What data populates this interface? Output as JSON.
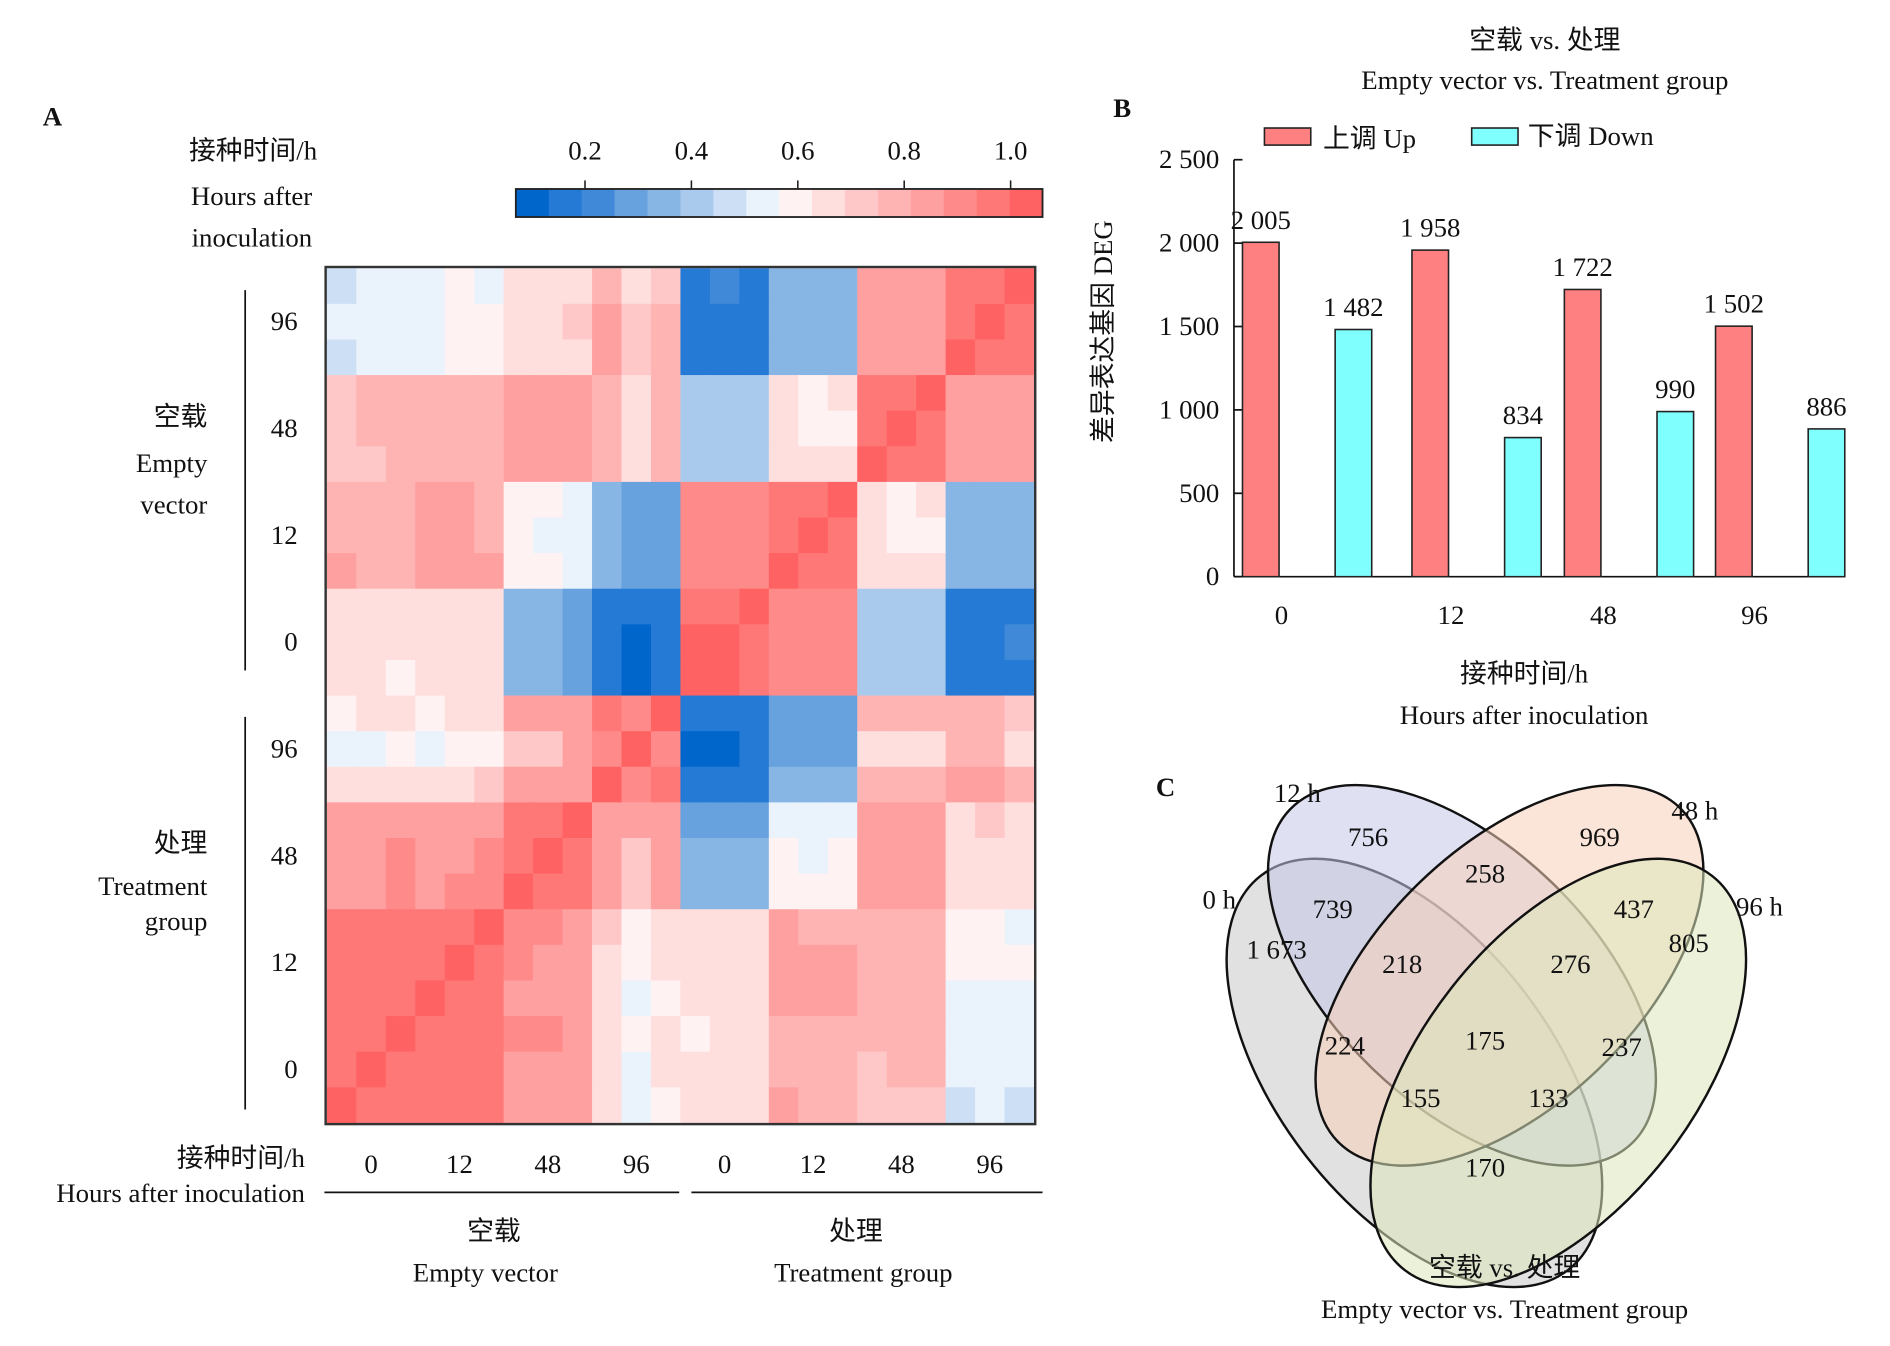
{
  "panels": {
    "a": "A",
    "b": "B",
    "c": "C"
  },
  "chart_data": [
    {
      "type": "heatmap",
      "panel": "A",
      "title": "",
      "axis_title_cn": "接种时间/h",
      "axis_title_en_line1": "Hours after",
      "axis_title_en_line2": "inoculation",
      "bottom_axis_title_cn": "接种时间/h",
      "bottom_axis_title_en": "Hours after inoculation",
      "colorbar": {
        "ticks": [
          "0.2",
          "0.4",
          "0.6",
          "0.8",
          "1.0"
        ],
        "tick_values": [
          0.2,
          0.4,
          0.6,
          0.8,
          1.0
        ],
        "range": [
          0.07,
          1.06
        ],
        "levels": [
          "#0066cc",
          "#247ad4",
          "#4089d8",
          "#67a2df",
          "#87b5e4",
          "#a9caec",
          "#cddff4",
          "#eaf2fb",
          "#fff2f2",
          "#ffdede",
          "#ffc8c8",
          "#ffb4b4",
          "#ffa0a0",
          "#ff8a8a",
          "#ff7878",
          "#ff6262"
        ]
      },
      "row_groups": [
        {
          "cn": "空载",
          "en_line1": "Empty",
          "en_line2": "vector",
          "times": [
            "96",
            "48",
            "12",
            "0"
          ]
        },
        {
          "cn": "处理",
          "en_line1": "Treatment",
          "en_line2": "group",
          "times": [
            "96",
            "48",
            "12",
            "0"
          ]
        }
      ],
      "col_groups": [
        {
          "cn": "空载",
          "en": "Empty vector",
          "times": [
            "0",
            "12",
            "48",
            "96"
          ]
        },
        {
          "cn": "处理",
          "en": "Treatment group",
          "times": [
            "0",
            "12",
            "48",
            "96"
          ]
        }
      ],
      "replicates_per_sample": 3,
      "cell_levels": [
        [
          6,
          7,
          7,
          7,
          8,
          7,
          9,
          9,
          9,
          11,
          9,
          10,
          1,
          2,
          1,
          4,
          4,
          4,
          12,
          12,
          12,
          14,
          14,
          15
        ],
        [
          7,
          7,
          7,
          7,
          8,
          8,
          9,
          9,
          10,
          12,
          10,
          11,
          1,
          1,
          1,
          4,
          4,
          4,
          12,
          12,
          12,
          14,
          15,
          14
        ],
        [
          6,
          7,
          7,
          7,
          8,
          8,
          9,
          9,
          9,
          12,
          10,
          11,
          1,
          1,
          1,
          4,
          4,
          4,
          12,
          12,
          12,
          15,
          14,
          14
        ],
        [
          10,
          11,
          11,
          11,
          11,
          11,
          12,
          12,
          12,
          11,
          9,
          11,
          5,
          5,
          5,
          9,
          8,
          9,
          14,
          14,
          15,
          12,
          12,
          12
        ],
        [
          10,
          11,
          11,
          11,
          11,
          11,
          12,
          12,
          12,
          11,
          9,
          11,
          5,
          5,
          5,
          9,
          8,
          8,
          14,
          15,
          14,
          12,
          12,
          12
        ],
        [
          10,
          10,
          11,
          11,
          11,
          11,
          12,
          12,
          12,
          11,
          9,
          11,
          5,
          5,
          5,
          9,
          9,
          9,
          15,
          14,
          14,
          12,
          12,
          12
        ],
        [
          11,
          11,
          11,
          12,
          12,
          11,
          8,
          8,
          7,
          4,
          3,
          3,
          13,
          13,
          13,
          14,
          14,
          15,
          9,
          8,
          9,
          4,
          4,
          4
        ],
        [
          11,
          11,
          11,
          12,
          12,
          11,
          8,
          7,
          7,
          4,
          3,
          3,
          13,
          13,
          13,
          14,
          15,
          14,
          9,
          8,
          8,
          4,
          4,
          4
        ],
        [
          12,
          11,
          11,
          12,
          12,
          12,
          8,
          8,
          7,
          4,
          3,
          3,
          13,
          13,
          13,
          15,
          14,
          14,
          9,
          9,
          9,
          4,
          4,
          4
        ],
        [
          9,
          9,
          9,
          9,
          9,
          9,
          4,
          4,
          3,
          1,
          1,
          1,
          14,
          14,
          15,
          13,
          13,
          13,
          5,
          5,
          5,
          1,
          1,
          1
        ],
        [
          9,
          9,
          9,
          9,
          9,
          9,
          4,
          4,
          3,
          1,
          0,
          1,
          15,
          15,
          14,
          13,
          13,
          13,
          5,
          5,
          5,
          1,
          1,
          2
        ],
        [
          9,
          9,
          8,
          9,
          9,
          9,
          4,
          4,
          3,
          1,
          0,
          1,
          15,
          15,
          14,
          13,
          13,
          13,
          5,
          5,
          5,
          1,
          1,
          1
        ],
        [
          8,
          9,
          9,
          8,
          9,
          9,
          12,
          12,
          12,
          14,
          13,
          15,
          1,
          1,
          1,
          3,
          3,
          3,
          11,
          11,
          11,
          11,
          11,
          10
        ],
        [
          7,
          7,
          8,
          7,
          8,
          8,
          10,
          10,
          12,
          13,
          15,
          13,
          0,
          0,
          1,
          3,
          3,
          3,
          9,
          9,
          9,
          11,
          11,
          9
        ],
        [
          9,
          9,
          9,
          9,
          9,
          10,
          12,
          12,
          12,
          15,
          13,
          14,
          1,
          1,
          1,
          4,
          4,
          4,
          11,
          11,
          11,
          12,
          12,
          11
        ],
        [
          12,
          12,
          12,
          12,
          12,
          12,
          14,
          14,
          15,
          12,
          12,
          12,
          3,
          3,
          3,
          7,
          7,
          7,
          12,
          12,
          12,
          9,
          10,
          9
        ],
        [
          12,
          12,
          13,
          12,
          12,
          13,
          14,
          15,
          14,
          12,
          10,
          12,
          4,
          4,
          4,
          8,
          7,
          8,
          12,
          12,
          12,
          9,
          9,
          9
        ],
        [
          12,
          12,
          13,
          12,
          13,
          13,
          15,
          14,
          14,
          12,
          10,
          12,
          4,
          4,
          4,
          8,
          8,
          8,
          12,
          12,
          12,
          9,
          9,
          9
        ],
        [
          14,
          14,
          14,
          14,
          14,
          15,
          13,
          13,
          12,
          10,
          8,
          9,
          9,
          9,
          9,
          12,
          11,
          11,
          11,
          11,
          11,
          8,
          8,
          7
        ],
        [
          14,
          14,
          14,
          14,
          15,
          14,
          13,
          12,
          12,
          9,
          8,
          9,
          9,
          9,
          9,
          12,
          12,
          12,
          11,
          11,
          11,
          8,
          8,
          8
        ],
        [
          14,
          14,
          14,
          15,
          14,
          14,
          12,
          12,
          12,
          9,
          7,
          8,
          9,
          9,
          9,
          12,
          12,
          12,
          11,
          11,
          11,
          7,
          7,
          7
        ],
        [
          14,
          14,
          15,
          14,
          14,
          14,
          13,
          13,
          12,
          9,
          8,
          9,
          8,
          9,
          9,
          11,
          11,
          11,
          11,
          11,
          11,
          7,
          7,
          7
        ],
        [
          14,
          15,
          14,
          14,
          14,
          14,
          12,
          12,
          12,
          9,
          7,
          9,
          9,
          9,
          9,
          11,
          11,
          11,
          10,
          11,
          11,
          7,
          7,
          7
        ],
        [
          15,
          14,
          14,
          14,
          14,
          14,
          12,
          12,
          12,
          9,
          7,
          8,
          9,
          9,
          9,
          12,
          11,
          11,
          10,
          10,
          10,
          6,
          7,
          6
        ]
      ]
    },
    {
      "type": "bar",
      "panel": "B",
      "title_cn": "空载 vs. 处理",
      "title_en": "Empty vector vs. Treatment group",
      "categories": [
        "0",
        "12",
        "48",
        "96"
      ],
      "series": [
        {
          "name": "上调 Up",
          "color": "#ff8080",
          "values": [
            2005,
            1958,
            1722,
            1502
          ],
          "labels": [
            "2 005",
            "1 958",
            "1 722",
            "1 502"
          ]
        },
        {
          "name": "下调 Down",
          "color": "#80ffff",
          "values": [
            1482,
            834,
            990,
            886
          ],
          "labels": [
            "1 482",
            "834",
            "990",
            "886"
          ]
        }
      ],
      "ylabel": "差异表达基因 DEG",
      "xlabel_cn": "接种时间/h",
      "xlabel_en": "Hours after inoculation",
      "yticks": [
        0,
        500,
        1000,
        1500,
        2000,
        2500
      ],
      "ytick_labels": [
        "0",
        "500",
        "1 000",
        "1 500",
        "2 000",
        "2 500"
      ],
      "ylim": [
        0,
        2500
      ],
      "legend_position": "top-left",
      "grid": false
    },
    {
      "type": "venn",
      "panel": "C",
      "title_cn": "空载 vs. 处理",
      "title_en": "Empty vector vs. Treatment group",
      "sets": [
        {
          "name": "0 h",
          "color": "#c8c8c8"
        },
        {
          "name": "12 h",
          "color": "#c4c8ea"
        },
        {
          "name": "48 h",
          "color": "#f8cfb8"
        },
        {
          "name": "96 h",
          "color": "#dce8bc"
        }
      ],
      "regions": [
        {
          "sets": [
            "12 h"
          ],
          "label": "756",
          "value": 756
        },
        {
          "sets": [
            "48 h"
          ],
          "label": "969",
          "value": 969
        },
        {
          "sets": [
            "12 h",
            "48 h"
          ],
          "label": "258",
          "value": 258
        },
        {
          "sets": [
            "0 h",
            "12 h"
          ],
          "label": "739",
          "value": 739
        },
        {
          "sets": [
            "48 h",
            "96 h"
          ],
          "label": "437",
          "value": 437
        },
        {
          "sets": [
            "0 h"
          ],
          "label": "1 673",
          "value": 1673
        },
        {
          "sets": [
            "0 h",
            "12 h",
            "48 h"
          ],
          "label": "218",
          "value": 218
        },
        {
          "sets": [
            "12 h",
            "48 h",
            "96 h"
          ],
          "label": "276",
          "value": 276
        },
        {
          "sets": [
            "96 h"
          ],
          "label": "805",
          "value": 805
        },
        {
          "sets": [
            "0 h",
            "48 h"
          ],
          "label": "224",
          "value": 224
        },
        {
          "sets": [
            "0 h",
            "12 h",
            "48 h",
            "96 h"
          ],
          "label": "175",
          "value": 175
        },
        {
          "sets": [
            "12 h",
            "96 h"
          ],
          "label": "237",
          "value": 237
        },
        {
          "sets": [
            "0 h",
            "48 h",
            "96 h"
          ],
          "label": "155",
          "value": 155
        },
        {
          "sets": [
            "0 h",
            "12 h",
            "96 h"
          ],
          "label": "133",
          "value": 133
        },
        {
          "sets": [
            "0 h",
            "96 h"
          ],
          "label": "170",
          "value": 170
        }
      ]
    }
  ]
}
